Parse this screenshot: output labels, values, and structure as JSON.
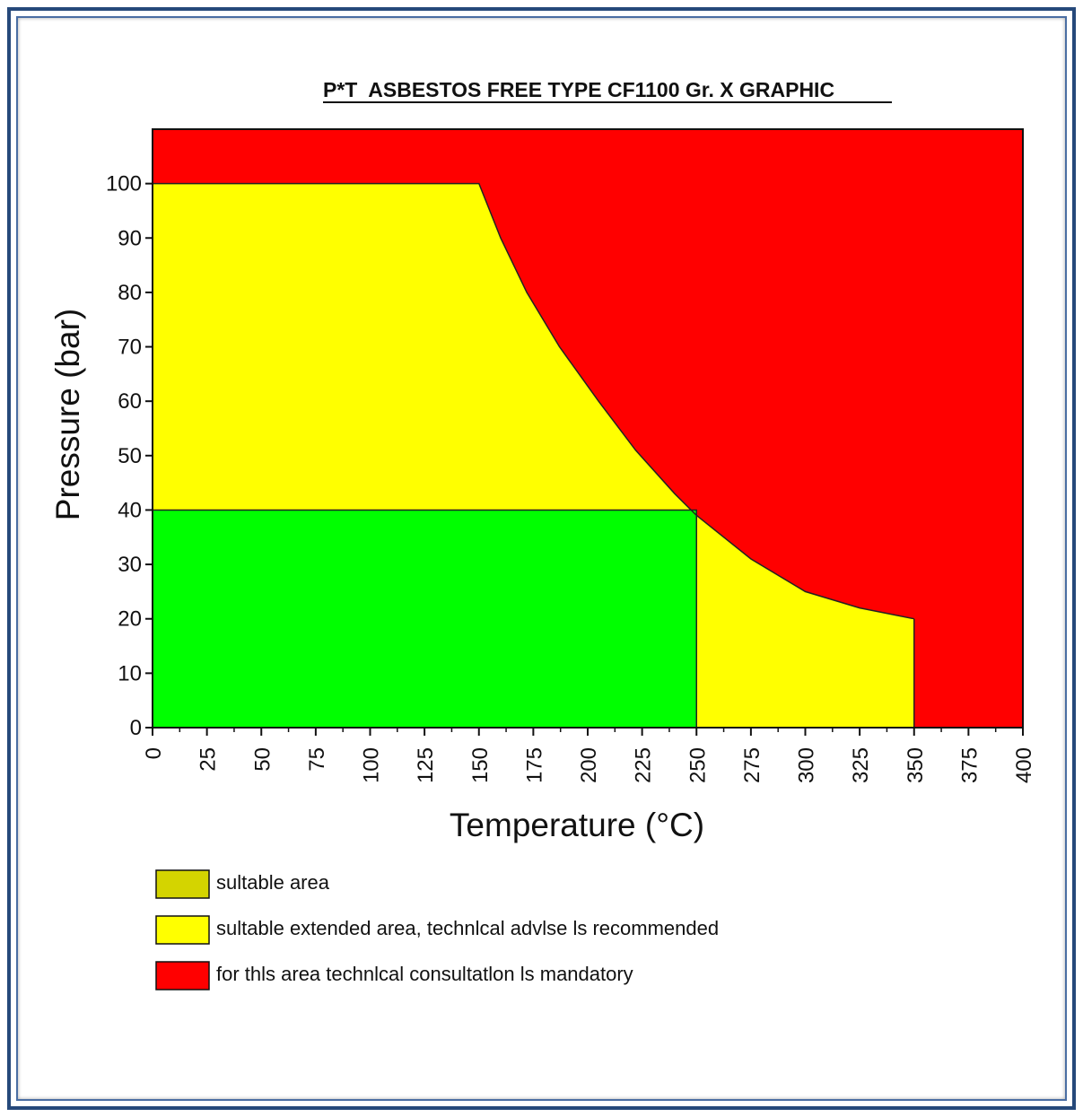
{
  "chart_data": {
    "type": "area",
    "title": "P*T  ASBESTOS FREE TYPE CF1100 Gr. X GRAPHIC",
    "xlabel": "Temperature (°C)",
    "ylabel": "Pressure (bar)",
    "xlim": [
      0,
      400
    ],
    "ylim": [
      0,
      110
    ],
    "x_ticks": [
      "0",
      "25",
      "50",
      "75",
      "100",
      "125",
      "150",
      "175",
      "200",
      "225",
      "250",
      "275",
      "300",
      "325",
      "350",
      "375",
      "400"
    ],
    "y_ticks": [
      "0",
      "10",
      "20",
      "30",
      "40",
      "50",
      "60",
      "70",
      "80",
      "90",
      "100"
    ],
    "grid": false,
    "regions": [
      {
        "name": "for this area technical consultation is mandatory",
        "color": "#ff0000",
        "polygon": [
          [
            0,
            110
          ],
          [
            400,
            110
          ],
          [
            400,
            0
          ],
          [
            0,
            0
          ]
        ]
      },
      {
        "name": "suitable extended area, technical advise is recommended",
        "color": "#ffff00",
        "polygon": [
          [
            0,
            100
          ],
          [
            150,
            100
          ],
          [
            160,
            90
          ],
          [
            172,
            80
          ],
          [
            187,
            70
          ],
          [
            205,
            60
          ],
          [
            222,
            51
          ],
          [
            240,
            43
          ],
          [
            250,
            39
          ],
          [
            275,
            31
          ],
          [
            300,
            25
          ],
          [
            325,
            22
          ],
          [
            350,
            20
          ],
          [
            350,
            0
          ],
          [
            0,
            0
          ]
        ]
      },
      {
        "name": "suitable area",
        "color": "#00ff00",
        "polygon": [
          [
            0,
            40
          ],
          [
            250,
            40
          ],
          [
            250,
            0
          ],
          [
            0,
            0
          ]
        ]
      }
    ],
    "boundary_curve": [
      [
        150,
        100
      ],
      [
        160,
        90
      ],
      [
        172,
        80
      ],
      [
        187,
        70
      ],
      [
        205,
        60
      ],
      [
        222,
        51
      ],
      [
        240,
        43
      ],
      [
        250,
        39
      ],
      [
        275,
        31
      ],
      [
        300,
        25
      ],
      [
        325,
        22
      ],
      [
        350,
        20
      ]
    ],
    "legend": [
      {
        "label": "sultable area",
        "color": "#d4d400"
      },
      {
        "label": "sultable extended area, technlcal advlse ls recommended",
        "color": "#ffff00"
      },
      {
        "label": "for thls area technlcal consultatlon ls mandatory",
        "color": "#ff0000"
      }
    ],
    "legend_position": "bottom-left"
  }
}
